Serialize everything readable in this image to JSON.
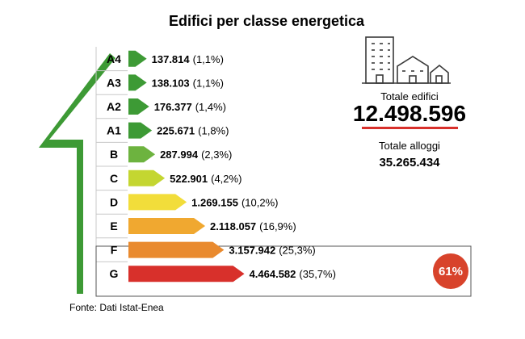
{
  "chart_data": {
    "type": "bar",
    "title": "Edifici per classe energetica",
    "categories": [
      "A4",
      "A3",
      "A2",
      "A1",
      "B",
      "C",
      "D",
      "E",
      "F",
      "G"
    ],
    "values": [
      137814,
      138103,
      176377,
      225671,
      287994,
      522901,
      1269155,
      2118057,
      3157942,
      4464582
    ],
    "value_labels": [
      "137.814",
      "138.103",
      "176.377",
      "225.671",
      "287.994",
      "522.901",
      "1.269.155",
      "2.118.057",
      "3.157.942",
      "4.464.582"
    ],
    "percent_labels": [
      "(1,1%)",
      "(1,1%)",
      "(1,4%)",
      "(1,8%)",
      "(2,3%)",
      "(4,2%)",
      "(10,2%)",
      "(16,9%)",
      "(25,3%)",
      "(35,7%)"
    ],
    "colors": [
      "#3d9a35",
      "#3d9a35",
      "#3d9a35",
      "#3d9a35",
      "#6db33f",
      "#c4d631",
      "#f2dd3a",
      "#f0a830",
      "#e98a2e",
      "#d8302b"
    ],
    "highlight": {
      "categories": [
        "F",
        "G"
      ],
      "badge": "61%",
      "badge_color": "#d8432b"
    },
    "source": "Fonte: Dati Istat-Enea"
  },
  "summary": {
    "total_buildings_label": "Totale edifici",
    "total_buildings_value": "12.498.596",
    "total_dwellings_label": "Totale alloggi",
    "total_dwellings_value": "35.265.434",
    "underline_color": "#d8302b",
    "icon": "buildings-icon"
  },
  "colors": {
    "arrow": "#3d9a35",
    "grid": "#c8c8c8",
    "text": "#1a1a1a"
  }
}
